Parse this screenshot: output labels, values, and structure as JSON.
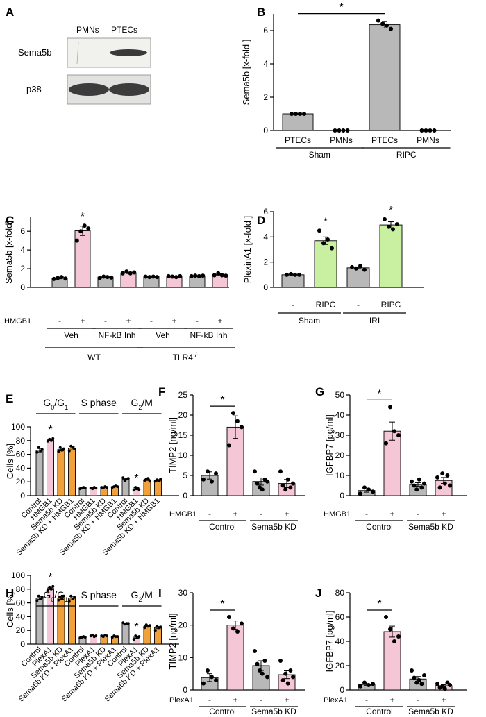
{
  "colors": {
    "gray": "#b8b8b8",
    "pink": "#f4c6d6",
    "green": "#c8f0a0",
    "orange": "#f0a13c",
    "black": "#000000"
  },
  "panel_a": {
    "letter": "A",
    "lane_labels": [
      "PMNs",
      "PTECs"
    ],
    "row_labels": [
      "Sema5b",
      "p38"
    ]
  },
  "chart_data": [
    {
      "id": "B",
      "type": "bar",
      "ylabel": "Sema5b [x-fold ]",
      "ylim": [
        0,
        7
      ],
      "yticks": [
        0,
        2,
        4,
        6
      ],
      "categories": [
        "PTECs",
        "PMNs",
        "PTECs",
        "PMNs"
      ],
      "values": [
        1.0,
        0.0,
        6.35,
        0.0
      ],
      "colors": [
        "gray",
        "gray",
        "gray",
        "gray"
      ],
      "points": [
        [
          1.0,
          1.0,
          1.0,
          1.0
        ],
        [
          0,
          0,
          0,
          0
        ],
        [
          6.6,
          6.4,
          6.3,
          6.1
        ],
        [
          0,
          0,
          0,
          0
        ]
      ],
      "errors": [
        0.02,
        0.0,
        0.2,
        0.0
      ],
      "groups": [
        {
          "label": "Sham",
          "from": 0,
          "to": 1
        },
        {
          "label": "RIPC",
          "from": 2,
          "to": 3
        }
      ],
      "signif": [
        {
          "from": 0,
          "to": 2,
          "label": "*"
        }
      ],
      "stars": []
    },
    {
      "id": "C",
      "type": "bar",
      "ylabel": "Sema5b [x-fold]",
      "ylim": [
        0,
        7.5
      ],
      "yticks": [
        0,
        2,
        4,
        6
      ],
      "row_label": "HMGB1",
      "categories": [
        "-",
        "+",
        "-",
        "+",
        "-",
        "+",
        "-",
        "+"
      ],
      "values": [
        1.0,
        6.05,
        1.1,
        1.55,
        1.15,
        1.15,
        1.2,
        1.35
      ],
      "colors": [
        "gray",
        "pink",
        "gray",
        "pink",
        "gray",
        "pink",
        "gray",
        "pink"
      ],
      "points": [
        [
          0.9,
          1.0,
          1.1,
          0.95
        ],
        [
          5.0,
          6.0,
          6.6,
          6.3
        ],
        [
          1.0,
          1.15,
          1.1,
          1.05
        ],
        [
          1.5,
          1.7,
          1.5,
          1.6
        ],
        [
          1.15,
          1.1,
          1.15,
          1.1
        ],
        [
          1.2,
          1.15,
          1.1,
          1.2
        ],
        [
          1.2,
          1.25,
          1.2,
          1.25
        ],
        [
          1.3,
          1.5,
          1.3,
          1.25
        ]
      ],
      "errors": [
        0.08,
        0.5,
        0.05,
        0.08,
        0.02,
        0.05,
        0.03,
        0.1
      ],
      "groups": [
        {
          "label": "Veh",
          "from": 0,
          "to": 1
        },
        {
          "label": "NF-kB Inh",
          "from": 2,
          "to": 3
        },
        {
          "label": "Veh",
          "from": 4,
          "to": 5
        },
        {
          "label": "NF-kB Inh",
          "from": 6,
          "to": 7
        }
      ],
      "groups2": [
        {
          "label": "WT",
          "from": 0,
          "to": 3
        },
        {
          "label": "TLR4",
          "sup": "-/-",
          "from": 4,
          "to": 7
        }
      ],
      "signif": [],
      "stars": [
        1
      ]
    },
    {
      "id": "D",
      "type": "bar",
      "ylabel": "PlexinA1 [x-fold ]",
      "ylim": [
        0,
        6
      ],
      "yticks": [
        0,
        2,
        4,
        6
      ],
      "categories": [
        "-",
        "RIPC",
        "-",
        "RIPC"
      ],
      "values": [
        1.0,
        3.7,
        1.55,
        4.95
      ],
      "colors": [
        "gray",
        "green",
        "gray",
        "green"
      ],
      "points": [
        [
          1.0,
          1.05,
          1.0,
          1.0
        ],
        [
          4.5,
          3.5,
          3.8,
          3.1
        ],
        [
          1.6,
          1.5,
          1.7,
          1.4
        ],
        [
          5.4,
          4.8,
          4.6,
          5.0
        ]
      ],
      "errors": [
        0.03,
        0.3,
        0.07,
        0.25
      ],
      "groups": [
        {
          "label": "Sham",
          "from": 0,
          "to": 1
        },
        {
          "label": "IRI",
          "from": 2,
          "to": 3
        }
      ],
      "signif": [],
      "stars": [
        1,
        3
      ]
    },
    {
      "id": "E",
      "type": "bar",
      "ylabel": "Cells [%]",
      "ylim": [
        0,
        100
      ],
      "yticks": [
        0,
        20,
        40,
        60,
        80,
        100
      ],
      "phases": [
        {
          "label": "G",
          "sub0": "0",
          "mid": "/G",
          "sub1": "1"
        },
        {
          "label": "S phase"
        },
        {
          "label": "G",
          "sub0": "2",
          "mid": "/M"
        }
      ],
      "categories": [
        "Control",
        "HMGB1",
        "Sema5b KD",
        "Sema5b KD + HMGB1",
        "Control",
        "HMGB1",
        "Sema5b KD",
        "Sema5b KD + HMGB1",
        "Control",
        "HMGB1",
        "Sema5b KD",
        "Sema5b KD + HMGB1"
      ],
      "values": [
        66,
        81,
        67,
        69,
        11,
        11,
        12,
        13,
        24,
        10,
        23,
        22
      ],
      "colors": [
        "gray",
        "pink",
        "orange",
        "orange",
        "gray",
        "pink",
        "orange",
        "orange",
        "gray",
        "pink",
        "orange",
        "orange"
      ],
      "points": [
        [
          63,
          70,
          65,
          67
        ],
        [
          79,
          82,
          80,
          83
        ],
        [
          64,
          70,
          66,
          68
        ],
        [
          65,
          72,
          70,
          68
        ],
        [
          10,
          11,
          12,
          11
        ],
        [
          11,
          10,
          12,
          11
        ],
        [
          12,
          11,
          13,
          12
        ],
        [
          12,
          13,
          14,
          13
        ],
        [
          26,
          22,
          24,
          25
        ],
        [
          8,
          12,
          11,
          9
        ],
        [
          22,
          24,
          25,
          21
        ],
        [
          21,
          23,
          22,
          24
        ]
      ],
      "errors": [
        2.5,
        1,
        2,
        2.5,
        0.5,
        0.5,
        0.5,
        0.5,
        1,
        1.5,
        1,
        1
      ],
      "stars": [
        1,
        9
      ]
    },
    {
      "id": "F",
      "type": "bar",
      "ylabel": "TIMP2 [ng/ml]",
      "ylim": [
        0,
        25
      ],
      "yticks": [
        0,
        5,
        10,
        15,
        20,
        25
      ],
      "row_label": "HMGB1",
      "categories": [
        "-",
        "+",
        "-",
        "+"
      ],
      "values": [
        5.0,
        17.0,
        3.5,
        3.0
      ],
      "colors": [
        "gray",
        "pink",
        "gray",
        "pink"
      ],
      "points": [
        [
          4,
          6,
          3.5,
          5.5
        ],
        [
          12.5,
          20.5,
          18.5,
          17
        ],
        [
          6,
          3,
          2,
          1.5,
          4,
          3.5
        ],
        [
          6,
          2.5,
          1.5,
          4,
          2,
          3
        ]
      ],
      "errors": [
        0.9,
        2.8,
        0.9,
        1.0
      ],
      "groups": [
        {
          "label": "Control",
          "from": 0,
          "to": 1
        },
        {
          "label": "Sema5b KD",
          "from": 2,
          "to": 3
        }
      ],
      "signif": [
        {
          "from": 0,
          "to": 1,
          "label": "*"
        }
      ],
      "stars": []
    },
    {
      "id": "G",
      "type": "bar",
      "ylabel": "IGFBP7 [pg/ml]",
      "ylim": [
        0,
        50
      ],
      "yticks": [
        0,
        10,
        20,
        30,
        40,
        50
      ],
      "row_label": "HMGB1",
      "categories": [
        "-",
        "+",
        "-",
        "+"
      ],
      "values": [
        2.5,
        32.0,
        5.5,
        7.5
      ],
      "colors": [
        "gray",
        "pink",
        "gray",
        "pink"
      ],
      "points": [
        [
          1,
          4,
          3,
          2
        ],
        [
          26,
          44,
          32,
          30
        ],
        [
          7,
          5,
          3,
          8,
          4,
          6
        ],
        [
          9,
          4,
          11,
          6,
          10,
          5
        ]
      ],
      "errors": [
        0.8,
        4.5,
        0.9,
        1.5
      ],
      "groups": [
        {
          "label": "Control",
          "from": 0,
          "to": 1
        },
        {
          "label": "Sema5b KD",
          "from": 2,
          "to": 3
        }
      ],
      "signif": [
        {
          "from": 0,
          "to": 1,
          "label": "*"
        }
      ],
      "stars": []
    },
    {
      "id": "H",
      "type": "bar",
      "ylabel": "Cells [%]",
      "ylim": [
        0,
        100
      ],
      "yticks": [
        0,
        20,
        40,
        60,
        80,
        100
      ],
      "phases": [
        {
          "label": "G",
          "sub0": "0",
          "mid": "/G",
          "sub1": "1"
        },
        {
          "label": "S phase"
        },
        {
          "label": "G",
          "sub0": "2",
          "mid": "/M"
        }
      ],
      "categories": [
        "Control",
        "PlexA1",
        "Sema5b KD",
        "Sema5b KD + PlexA1",
        "Control",
        "PlexA1",
        "Sema5b KD",
        "Sema5b KD + PlexA1",
        "Control",
        "PlexA1",
        "Sema5b KD",
        "Sema5b KD + PlexA1"
      ],
      "values": [
        67,
        81,
        67,
        67,
        10,
        12,
        12,
        11,
        30,
        10,
        26,
        24
      ],
      "colors": [
        "gray",
        "pink",
        "orange",
        "orange",
        "gray",
        "pink",
        "orange",
        "orange",
        "gray",
        "pink",
        "orange",
        "orange"
      ],
      "points": [
        [
          63,
          70,
          66,
          68
        ],
        [
          78,
          83,
          80,
          84
        ],
        [
          64,
          69,
          66,
          70
        ],
        [
          62,
          70,
          66,
          68
        ],
        [
          9,
          10,
          11,
          10
        ],
        [
          12,
          13,
          11,
          12
        ],
        [
          12,
          11,
          13,
          12
        ],
        [
          10,
          12,
          11,
          11
        ],
        [
          31,
          29,
          30,
          30
        ],
        [
          7,
          12,
          10,
          11
        ],
        [
          24,
          28,
          26,
          27
        ],
        [
          20,
          26,
          24,
          25
        ]
      ],
      "errors": [
        2,
        1.5,
        2,
        2.5,
        0.5,
        0.5,
        0.5,
        0.5,
        0.5,
        1.5,
        1,
        1.5
      ],
      "stars": [
        1,
        9
      ]
    },
    {
      "id": "I",
      "type": "bar",
      "ylabel": "TIMP2 [ng/ml]",
      "ylim": [
        0,
        30
      ],
      "yticks": [
        0,
        10,
        20,
        30
      ],
      "row_label": "PlexA1",
      "categories": [
        "-",
        "+",
        "-",
        "+"
      ],
      "values": [
        3.8,
        20.0,
        7.5,
        4.7
      ],
      "colors": [
        "gray",
        "pink",
        "gray",
        "pink"
      ],
      "points": [
        [
          2,
          6,
          4,
          3
        ],
        [
          22.5,
          19,
          18,
          20.5
        ],
        [
          12,
          8,
          6,
          5,
          9,
          4
        ],
        [
          9,
          3,
          5,
          2,
          6,
          4
        ]
      ],
      "errors": [
        1.2,
        1.3,
        1.5,
        1.2
      ],
      "groups": [
        {
          "label": "Control",
          "from": 0,
          "to": 1
        },
        {
          "label": "Sema5b KD",
          "from": 2,
          "to": 3
        }
      ],
      "signif": [
        {
          "from": 0,
          "to": 1,
          "label": "*"
        }
      ],
      "stars": []
    },
    {
      "id": "J",
      "type": "bar",
      "ylabel": "IGFBP7 [pg/ml]",
      "ylim": [
        0,
        80
      ],
      "yticks": [
        0,
        20,
        40,
        60,
        80
      ],
      "row_label": "PlexA1",
      "categories": [
        "-",
        "+",
        "-",
        "+"
      ],
      "values": [
        4.5,
        48.0,
        9.0,
        3.5
      ],
      "colors": [
        "gray",
        "pink",
        "gray",
        "pink"
      ],
      "points": [
        [
          3,
          6,
          4,
          5
        ],
        [
          60,
          50,
          40,
          44
        ],
        [
          16,
          10,
          6,
          8,
          5,
          12
        ],
        [
          5,
          2,
          3,
          1,
          6,
          4
        ]
      ],
      "errors": [
        0.7,
        4.5,
        2,
        0.8
      ],
      "groups": [
        {
          "label": "Control",
          "from": 0,
          "to": 1
        },
        {
          "label": "Sema5b KD",
          "from": 2,
          "to": 3
        }
      ],
      "signif": [
        {
          "from": 0,
          "to": 1,
          "label": "*"
        }
      ],
      "stars": []
    }
  ]
}
